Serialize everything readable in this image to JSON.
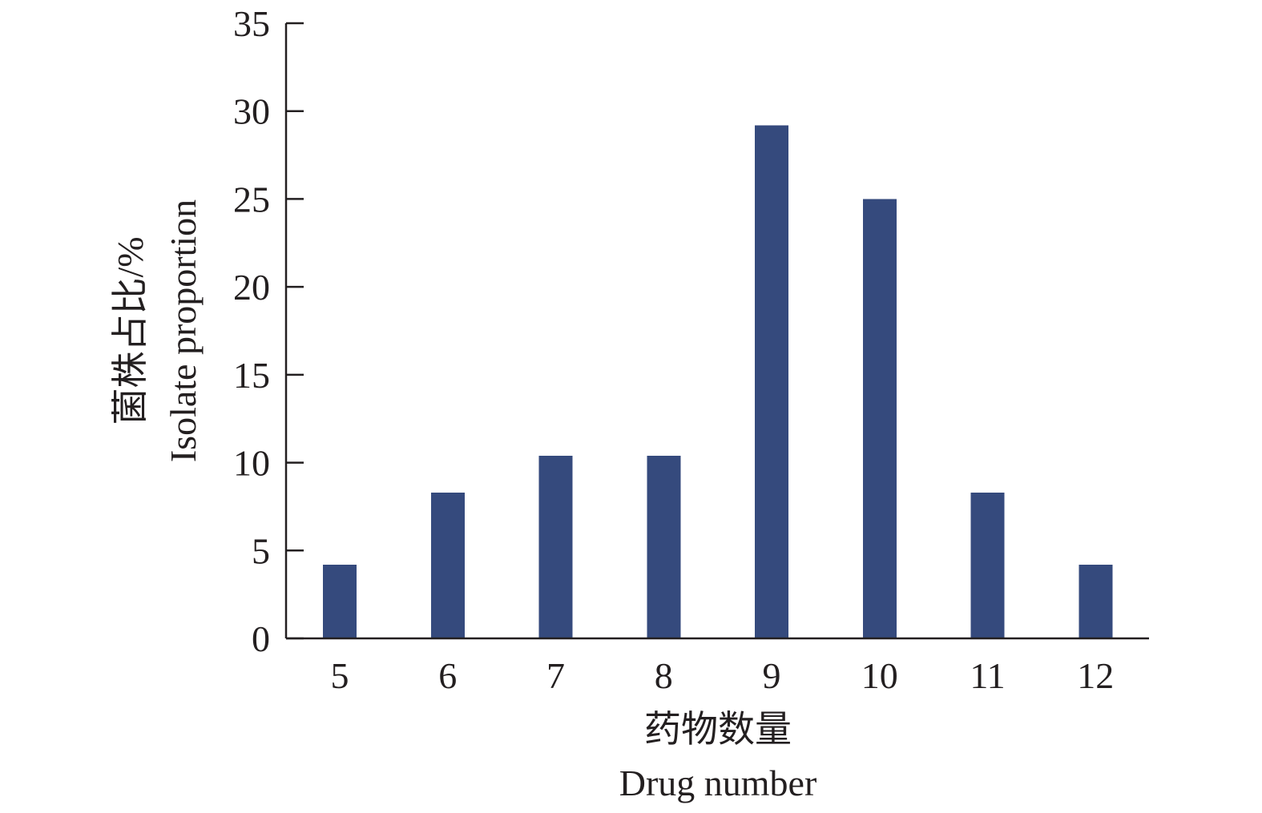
{
  "chart_data": {
    "type": "bar",
    "categories": [
      "5",
      "6",
      "7",
      "8",
      "9",
      "10",
      "11",
      "12"
    ],
    "values": [
      4.2,
      8.3,
      10.4,
      10.4,
      29.2,
      25.0,
      8.3,
      4.2
    ],
    "xlabel_cn": "药物数量",
    "xlabel": "Drug number",
    "ylabel_cn": "菌株占比/%",
    "ylabel": "Isolate proportion",
    "ylim": [
      0,
      35
    ],
    "yticks": [
      "0",
      "5",
      "10",
      "15",
      "20",
      "25",
      "30",
      "35"
    ],
    "bar_color": "#354a7d",
    "grid": false
  }
}
